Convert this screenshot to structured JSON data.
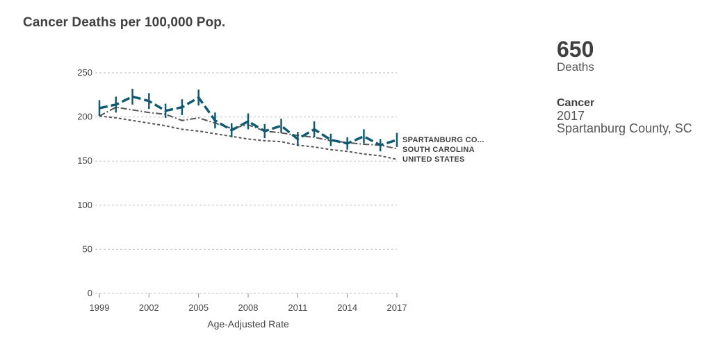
{
  "header": {
    "title": "Cancer Deaths per 100,000 Pop."
  },
  "summary": {
    "value": "650",
    "unit": "Deaths",
    "cause": "Cancer",
    "year": "2017",
    "place": "Spartanburg County, SC"
  },
  "chart_data": {
    "type": "line",
    "title": "Cancer Deaths per 100,000 Pop.",
    "xlabel": "Age-Adjusted Rate",
    "ylabel": "",
    "xlim": [
      1999,
      2017
    ],
    "ylim": [
      0,
      250
    ],
    "x_ticks": [
      "1999",
      "2002",
      "2005",
      "2008",
      "2011",
      "2014",
      "2017"
    ],
    "y_ticks": [
      "0",
      "50",
      "100",
      "150",
      "200",
      "250"
    ],
    "grid": true,
    "legend": "end-of-line labels",
    "x": [
      1999,
      2000,
      2001,
      2002,
      2003,
      2004,
      2005,
      2006,
      2007,
      2008,
      2009,
      2010,
      2011,
      2012,
      2013,
      2014,
      2015,
      2016,
      2017
    ],
    "series": [
      {
        "name": "SPARTANBURG CO...",
        "color": "#0f5a75",
        "values": [
          210,
          214,
          223,
          218,
          207,
          211,
          222,
          196,
          185,
          195,
          184,
          190,
          175,
          186,
          174,
          170,
          178,
          168,
          174
        ],
        "ci_halfwidth": [
          9,
          9,
          9,
          9,
          8,
          9,
          9,
          9,
          8,
          9,
          8,
          8,
          8,
          9,
          7,
          7,
          8,
          7,
          8
        ]
      },
      {
        "name": "SOUTH CAROLINA",
        "color": "#555555",
        "values": [
          201,
          211,
          208,
          205,
          203,
          196,
          199,
          193,
          187,
          191,
          184,
          182,
          179,
          177,
          173,
          171,
          169,
          168,
          164
        ]
      },
      {
        "name": "UNITED STATES",
        "color": "#555555",
        "values": [
          201,
          199,
          196,
          193,
          190,
          186,
          184,
          181,
          178,
          175,
          173,
          172,
          168,
          166,
          163,
          161,
          158,
          156,
          152
        ]
      }
    ]
  }
}
